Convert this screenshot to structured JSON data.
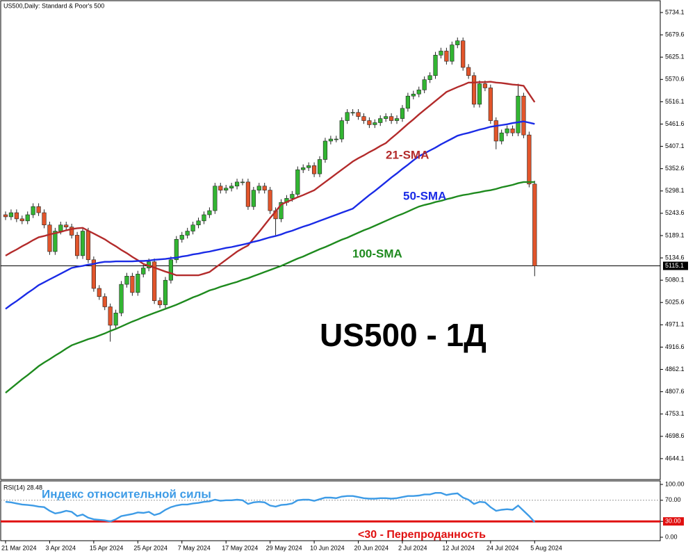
{
  "chart_data": {
    "type": "candlestick",
    "title": "US500,Daily:  Standard & Poor's 500",
    "categories": [
      "21 Mar 2024",
      null,
      null,
      null,
      null,
      null,
      null,
      null,
      "3 Apr 2024",
      null,
      null,
      null,
      null,
      null,
      null,
      null,
      "15 Apr 2024",
      null,
      null,
      null,
      null,
      null,
      null,
      null,
      "25 Apr 2024",
      null,
      null,
      null,
      null,
      null,
      null,
      null,
      "7 May 2024",
      null,
      null,
      null,
      null,
      null,
      null,
      null,
      "17 May 2024",
      null,
      null,
      null,
      null,
      null,
      null,
      null,
      "29 May 2024",
      null,
      null,
      null,
      null,
      null,
      null,
      null,
      "10 Jun 2024",
      null,
      null,
      null,
      null,
      null,
      null,
      null,
      "20 Jun 2024",
      null,
      null,
      null,
      null,
      null,
      null,
      null,
      "2 Jul 2024",
      null,
      null,
      null,
      null,
      null,
      null,
      null,
      "12 Jul 2024",
      null,
      null,
      null,
      null,
      null,
      null,
      null,
      "24 Jul 2024",
      null,
      null,
      null,
      null,
      null,
      null,
      null,
      "5 Aug 2024"
    ],
    "ohlc": [
      [
        5240,
        5248,
        5227,
        5235
      ],
      [
        5235,
        5253,
        5227,
        5245
      ],
      [
        5245,
        5253,
        5222,
        5230
      ],
      [
        5230,
        5238,
        5217,
        5225
      ],
      [
        5225,
        5248,
        5217,
        5240
      ],
      [
        5240,
        5268,
        5232,
        5260
      ],
      [
        5260,
        5268,
        5237,
        5245
      ],
      [
        5245,
        5253,
        5207,
        5215
      ],
      [
        5215,
        5223,
        5142,
        5150
      ],
      [
        5150,
        5208,
        5142,
        5200
      ],
      [
        5200,
        5223,
        5192,
        5215
      ],
      [
        5215,
        5223,
        5202,
        5210
      ],
      [
        5210,
        5218,
        5182,
        5190
      ],
      [
        5190,
        5198,
        5132,
        5140
      ],
      [
        5140,
        5208,
        5132,
        5200
      ],
      [
        5200,
        5208,
        5122,
        5130
      ],
      [
        5130,
        5138,
        5052,
        5060
      ],
      [
        5060,
        5068,
        5032,
        5040
      ],
      [
        5040,
        5048,
        5007,
        5015
      ],
      [
        5015,
        5023,
        4930,
        4970
      ],
      [
        4970,
        5008,
        4962,
        5000
      ],
      [
        5000,
        5078,
        4992,
        5070
      ],
      [
        5070,
        5098,
        5062,
        5090
      ],
      [
        5090,
        5098,
        5042,
        5050
      ],
      [
        5050,
        5103,
        5042,
        5095
      ],
      [
        5095,
        5118,
        5087,
        5110
      ],
      [
        5110,
        5133,
        5102,
        5125
      ],
      [
        5125,
        5133,
        5022,
        5030
      ],
      [
        5030,
        5038,
        5012,
        5020
      ],
      [
        5020,
        5088,
        5012,
        5080
      ],
      [
        5080,
        5138,
        5072,
        5130
      ],
      [
        5130,
        5188,
        5122,
        5180
      ],
      [
        5180,
        5198,
        5172,
        5190
      ],
      [
        5190,
        5208,
        5182,
        5200
      ],
      [
        5200,
        5223,
        5192,
        5215
      ],
      [
        5215,
        5233,
        5207,
        5225
      ],
      [
        5225,
        5248,
        5217,
        5240
      ],
      [
        5240,
        5258,
        5232,
        5250
      ],
      [
        5250,
        5318,
        5242,
        5310
      ],
      [
        5310,
        5318,
        5292,
        5300
      ],
      [
        5300,
        5313,
        5292,
        5305
      ],
      [
        5305,
        5318,
        5297,
        5310
      ],
      [
        5310,
        5328,
        5302,
        5320
      ],
      [
        5320,
        5328,
        5312,
        5320
      ],
      [
        5320,
        5328,
        5252,
        5260
      ],
      [
        5260,
        5308,
        5252,
        5300
      ],
      [
        5300,
        5318,
        5292,
        5310
      ],
      [
        5310,
        5318,
        5292,
        5300
      ],
      [
        5300,
        5308,
        5242,
        5250
      ],
      [
        5250,
        5258,
        5190,
        5230
      ],
      [
        5230,
        5278,
        5222,
        5270
      ],
      [
        5270,
        5288,
        5262,
        5280
      ],
      [
        5280,
        5298,
        5272,
        5290
      ],
      [
        5290,
        5358,
        5282,
        5350
      ],
      [
        5350,
        5363,
        5342,
        5355
      ],
      [
        5355,
        5368,
        5347,
        5360
      ],
      [
        5360,
        5368,
        5332,
        5340
      ],
      [
        5340,
        5383,
        5332,
        5375
      ],
      [
        5375,
        5428,
        5367,
        5420
      ],
      [
        5420,
        5433,
        5412,
        5425
      ],
      [
        5425,
        5433,
        5417,
        5425
      ],
      [
        5425,
        5478,
        5417,
        5470
      ],
      [
        5470,
        5498,
        5462,
        5490
      ],
      [
        5490,
        5498,
        5482,
        5490
      ],
      [
        5490,
        5498,
        5472,
        5480
      ],
      [
        5480,
        5488,
        5462,
        5470
      ],
      [
        5470,
        5478,
        5452,
        5460
      ],
      [
        5460,
        5473,
        5452,
        5465
      ],
      [
        5465,
        5483,
        5457,
        5475
      ],
      [
        5475,
        5488,
        5467,
        5480
      ],
      [
        5480,
        5488,
        5462,
        5470
      ],
      [
        5470,
        5483,
        5462,
        5475
      ],
      [
        5475,
        5508,
        5467,
        5500
      ],
      [
        5500,
        5538,
        5492,
        5530
      ],
      [
        5530,
        5543,
        5522,
        5535
      ],
      [
        5535,
        5553,
        5527,
        5545
      ],
      [
        5545,
        5578,
        5537,
        5570
      ],
      [
        5570,
        5588,
        5562,
        5580
      ],
      [
        5580,
        5638,
        5572,
        5630
      ],
      [
        5630,
        5648,
        5622,
        5640
      ],
      [
        5640,
        5648,
        5607,
        5615
      ],
      [
        5615,
        5663,
        5607,
        5655
      ],
      [
        5655,
        5673,
        5647,
        5665
      ],
      [
        5665,
        5673,
        5592,
        5600
      ],
      [
        5600,
        5608,
        5572,
        5580
      ],
      [
        5580,
        5588,
        5502,
        5510
      ],
      [
        5510,
        5568,
        5502,
        5560
      ],
      [
        5560,
        5568,
        5542,
        5550
      ],
      [
        5550,
        5558,
        5462,
        5470
      ],
      [
        5470,
        5478,
        5400,
        5420
      ],
      [
        5420,
        5448,
        5412,
        5440
      ],
      [
        5440,
        5458,
        5432,
        5450
      ],
      [
        5450,
        5458,
        5432,
        5440
      ],
      [
        5440,
        5560,
        5432,
        5530
      ],
      [
        5530,
        5538,
        5427,
        5435
      ],
      [
        5435,
        5443,
        5307,
        5315
      ],
      [
        5315,
        5323,
        5090,
        5115
      ]
    ],
    "up_color": "#32b532",
    "down_color": "#e2552b",
    "series": [
      {
        "name": "21-SMA",
        "color": "#b32b2b",
        "values": [
          5140,
          5148,
          5155,
          5163,
          5170,
          5178,
          5185,
          5188,
          5192,
          5195,
          5198,
          5202,
          5205,
          5207,
          5208,
          5201,
          5194,
          5187,
          5180,
          5171,
          5163,
          5154,
          5146,
          5137,
          5129,
          5120,
          5115,
          5111,
          5106,
          5101,
          5097,
          5092,
          5092,
          5092,
          5092,
          5092,
          5096,
          5100,
          5110,
          5120,
          5130,
          5140,
          5150,
          5158,
          5165,
          5182,
          5198,
          5215,
          5232,
          5248,
          5265,
          5271,
          5277,
          5283,
          5288,
          5294,
          5300,
          5310,
          5320,
          5330,
          5340,
          5350,
          5360,
          5370,
          5378,
          5385,
          5393,
          5400,
          5408,
          5415,
          5427,
          5438,
          5450,
          5462,
          5473,
          5485,
          5496,
          5507,
          5518,
          5529,
          5540,
          5546,
          5552,
          5557,
          5563,
          5563,
          5564,
          5564,
          5565,
          5563,
          5562,
          5560,
          5558,
          5557,
          5555,
          5535,
          5515
        ]
      },
      {
        "name": "50-SMA",
        "color": "#1a2be6",
        "values": [
          5010,
          5020,
          5029,
          5039,
          5049,
          5058,
          5068,
          5075,
          5082,
          5089,
          5096,
          5103,
          5110,
          5113,
          5115,
          5118,
          5120,
          5123,
          5125,
          5125,
          5126,
          5126,
          5126,
          5126,
          5127,
          5127,
          5128,
          5130,
          5131,
          5132,
          5134,
          5135,
          5138,
          5140,
          5143,
          5145,
          5148,
          5150,
          5153,
          5156,
          5159,
          5161,
          5164,
          5167,
          5170,
          5174,
          5177,
          5181,
          5185,
          5188,
          5192,
          5197,
          5201,
          5206,
          5211,
          5215,
          5220,
          5225,
          5230,
          5235,
          5240,
          5245,
          5250,
          5255,
          5266,
          5277,
          5288,
          5298,
          5309,
          5320,
          5331,
          5341,
          5352,
          5362,
          5373,
          5383,
          5390,
          5397,
          5404,
          5412,
          5419,
          5426,
          5433,
          5437,
          5440,
          5444,
          5448,
          5451,
          5455,
          5457,
          5459,
          5461,
          5464,
          5466,
          5468,
          5465,
          5462
        ]
      },
      {
        "name": "100-SMA",
        "color": "#1e8a1e",
        "values": [
          4805,
          4816,
          4827,
          4838,
          4848,
          4859,
          4870,
          4879,
          4887,
          4896,
          4904,
          4913,
          4921,
          4926,
          4931,
          4936,
          4940,
          4945,
          4950,
          4956,
          4961,
          4967,
          4973,
          4979,
          4984,
          4990,
          4995,
          5000,
          5005,
          5010,
          5015,
          5020,
          5026,
          5032,
          5038,
          5043,
          5049,
          5055,
          5059,
          5064,
          5068,
          5072,
          5076,
          5081,
          5085,
          5090,
          5095,
          5100,
          5105,
          5110,
          5115,
          5121,
          5127,
          5133,
          5138,
          5144,
          5150,
          5156,
          5161,
          5167,
          5173,
          5179,
          5184,
          5190,
          5196,
          5202,
          5207,
          5213,
          5219,
          5225,
          5231,
          5237,
          5242,
          5248,
          5254,
          5260,
          5264,
          5267,
          5271,
          5274,
          5278,
          5281,
          5285,
          5288,
          5290,
          5293,
          5295,
          5298,
          5300,
          5303,
          5307,
          5310,
          5313,
          5317,
          5320,
          5320,
          5320
        ]
      }
    ],
    "ylim": [
      4593,
      5761.3
    ],
    "yticks": [
      5734.1,
      5679.6,
      5625.1,
      5570.6,
      5516.1,
      5461.6,
      5407.1,
      5352.6,
      5298.1,
      5243.6,
      5189.1,
      5134.6,
      5080.1,
      5025.6,
      4971.1,
      4916.6,
      4862.1,
      4807.6,
      4753.1,
      4698.6,
      4644.1
    ],
    "current_price": 5115.1,
    "big_label": "US500 - 1Д",
    "rsi": {
      "label": "RSI(14) 28.48",
      "title": "Индекс относительной силы",
      "note": "<30 - Перепроданность",
      "color": "#3d9be6",
      "values": [
        67,
        66,
        64,
        62,
        61,
        60,
        58,
        57,
        50,
        45,
        47,
        50,
        48,
        40,
        43,
        37,
        34,
        33,
        32,
        30,
        34,
        40,
        42,
        44,
        47,
        46,
        48,
        42,
        45,
        52,
        57,
        60,
        62,
        62,
        64,
        65,
        67,
        68,
        71,
        69,
        70,
        70,
        71,
        70,
        63,
        66,
        67,
        66,
        60,
        58,
        61,
        62,
        64,
        70,
        71,
        71,
        69,
        72,
        75,
        75,
        74,
        77,
        78,
        78,
        76,
        74,
        73,
        73,
        74,
        74,
        73,
        74,
        76,
        78,
        78,
        79,
        81,
        81,
        84,
        84,
        80,
        82,
        83,
        75,
        71,
        63,
        67,
        66,
        57,
        50,
        52,
        53,
        52,
        60,
        50,
        40,
        28.48
      ],
      "ylim": [
        -6.6,
        106.6
      ],
      "yticks": [
        {
          "value": 100,
          "label": "100.00"
        },
        {
          "value": 70,
          "label": "70.00"
        },
        {
          "value": 30,
          "label": "30.00"
        },
        {
          "value": 0,
          "label": "0.00"
        }
      ],
      "overbought": 70,
      "oversold": 30,
      "oversold_color": "#e01010"
    }
  }
}
